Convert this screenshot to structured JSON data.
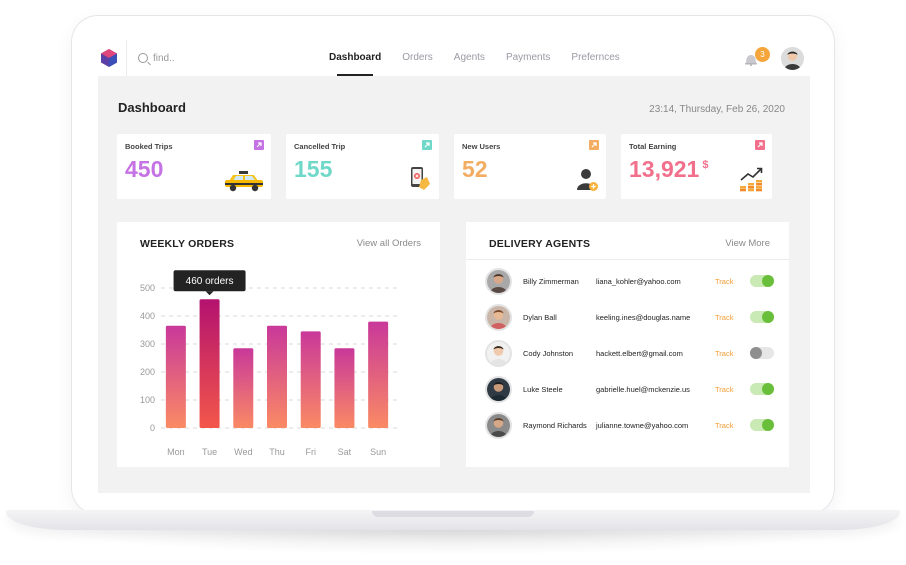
{
  "nav": {
    "search_placeholder": "find..",
    "tabs": [
      {
        "label": "Dashboard",
        "active": true
      },
      {
        "label": "Orders",
        "active": false
      },
      {
        "label": "Agents",
        "active": false
      },
      {
        "label": "Payments",
        "active": false
      },
      {
        "label": "Prefernces",
        "active": false
      }
    ],
    "notification_count": "3"
  },
  "header": {
    "title": "Dashboard",
    "datetime": "23:14, Thursday, Feb 26, 2020"
  },
  "stats": [
    {
      "label": "Booked Trips",
      "value": "450",
      "color": "#c572e5",
      "corner_color": "#c572e5",
      "icon": "taxi-icon"
    },
    {
      "label": "Cancelled Trip",
      "value": "155",
      "color": "#6fd8c8",
      "corner_color": "#6fd8c8",
      "icon": "cancelled-phone-icon"
    },
    {
      "label": "New Users",
      "value": "52",
      "color": "#f3ad63",
      "corner_color": "#f3ad63",
      "icon": "new-user-icon"
    },
    {
      "label": "Total Earning",
      "value": "13,921",
      "currency": "$",
      "color": "#f2708c",
      "corner_color": "#f2708c",
      "icon": "earnings-chart-icon"
    }
  ],
  "weekly_orders": {
    "title": "WEEKLY ORDERS",
    "link": "View all Orders",
    "tooltip": "460 orders"
  },
  "chart_data": {
    "type": "bar",
    "categories": [
      "Mon",
      "Tue",
      "Wed",
      "Thu",
      "Fri",
      "Sat",
      "Sun"
    ],
    "values": [
      365,
      460,
      285,
      365,
      345,
      285,
      380
    ],
    "yticks": [
      0,
      100,
      200,
      300,
      400,
      500
    ],
    "ylim": [
      0,
      500
    ],
    "highlight_index": 1,
    "gradient_top": "#c9389a",
    "gradient_bottom": "#fa8a64",
    "highlight_top": "#b3126f",
    "highlight_bottom": "#f3574a",
    "grid": "dashed"
  },
  "delivery_agents": {
    "title": "DELIVERY AGENTS",
    "link": "View More",
    "agents": [
      {
        "name": "Billy Zimmerman",
        "email": "liana_kohler@yahoo.com",
        "track": "Track",
        "enabled": true
      },
      {
        "name": "Dylan Ball",
        "email": "keeling.ines@douglas.name",
        "track": "Track",
        "enabled": true
      },
      {
        "name": "Cody Johnston",
        "email": "hackett.elbert@gmail.com",
        "track": "Track",
        "enabled": false
      },
      {
        "name": "Luke Steele",
        "email": "gabrielle.huel@mckenzie.us",
        "track": "Track",
        "enabled": true
      },
      {
        "name": "Raymond Richards",
        "email": "julianne.towne@yahoo.com",
        "track": "Track",
        "enabled": true
      }
    ]
  }
}
